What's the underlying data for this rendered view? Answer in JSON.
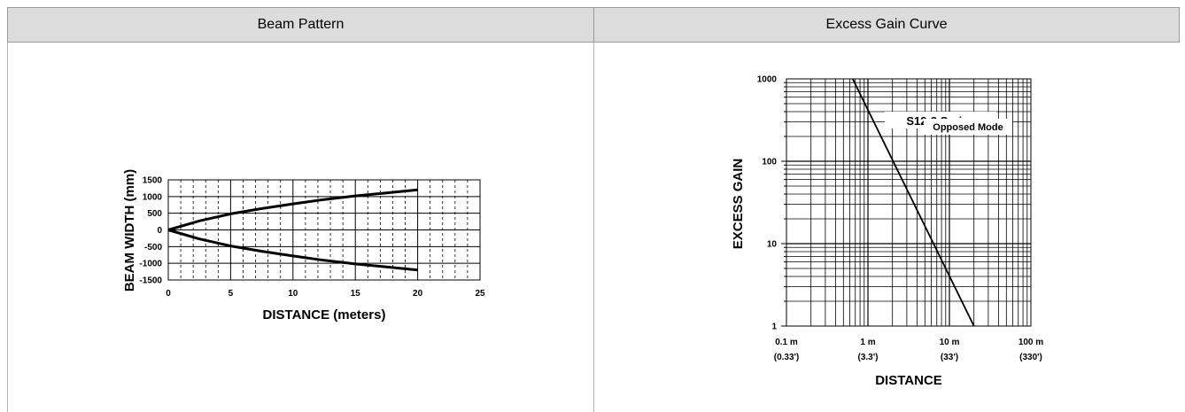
{
  "table": {
    "left_header": "Beam Pattern",
    "right_header": "Excess Gain Curve"
  },
  "chart_data": [
    {
      "type": "line",
      "title": "",
      "xlabel": "DISTANCE (meters)",
      "ylabel": "BEAM WIDTH (mm)",
      "xlim": [
        0,
        25
      ],
      "ylim": [
        -1500,
        1500
      ],
      "x_ticks": [
        0,
        5,
        10,
        15,
        20,
        25
      ],
      "y_ticks": [
        1500,
        1000,
        500,
        0,
        -500,
        -1000,
        -1500
      ],
      "x_tick_labels": [
        "0",
        "5",
        "10",
        "15",
        "20",
        "25"
      ],
      "y_tick_labels": [
        "1500",
        "1000",
        "500",
        "0",
        "-500",
        "-1000",
        "-1500"
      ],
      "grid": true,
      "legend": "none",
      "line_color": "#000000",
      "series": [
        {
          "x": [
            0,
            2.5,
            5,
            7.5,
            10,
            12.5,
            15,
            17.5,
            20
          ],
          "y": [
            0,
            270,
            480,
            640,
            780,
            910,
            1020,
            1110,
            1200
          ]
        },
        {
          "x": [
            0,
            2.5,
            5,
            7.5,
            10,
            12.5,
            15,
            17.5,
            20
          ],
          "y": [
            0,
            -270,
            -480,
            -640,
            -780,
            -910,
            -1020,
            -1110,
            -1200
          ]
        }
      ]
    },
    {
      "type": "line",
      "title": "",
      "xlabel": "DISTANCE",
      "ylabel": "EXCESS GAIN",
      "x_scale": "log",
      "y_scale": "log",
      "xlim": [
        0.1,
        100
      ],
      "ylim": [
        1,
        1000
      ],
      "x_tick_values": [
        0.1,
        1,
        10,
        100
      ],
      "x_tick_labels": [
        "0.1 m",
        "1 m",
        "10 m",
        "100 m"
      ],
      "x_tick_sublabels": [
        "(0.33')",
        "(3.3')",
        "(33')",
        "(330')"
      ],
      "y_tick_values": [
        1,
        10,
        100,
        1000
      ],
      "y_tick_labels": [
        "1",
        "10",
        "100",
        "1000"
      ],
      "grid": true,
      "legend": "none",
      "annotations": [
        "S12-2 Series",
        "Opposed Mode"
      ],
      "line_color": "#000000",
      "series": [
        {
          "x": [
            0.65,
            20
          ],
          "y": [
            1000,
            1
          ]
        }
      ]
    }
  ]
}
